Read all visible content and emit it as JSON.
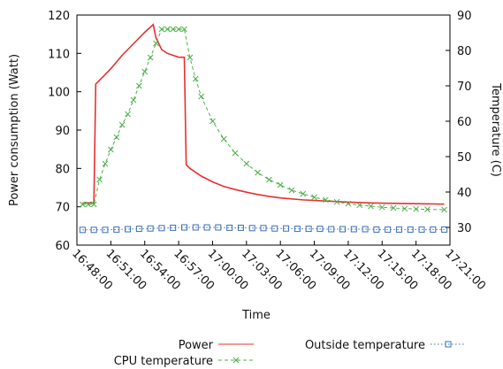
{
  "chart_data": {
    "type": "line",
    "xlabel": "Time",
    "ylabel": "Power consumption (Watt)",
    "y2label": "Temperature (C)",
    "xlim": [
      "16:48:00",
      "17:21:00"
    ],
    "xticks": [
      "16:48:00",
      "16:51:00",
      "16:54:00",
      "16:57:00",
      "17:00:00",
      "17:03:00",
      "17:06:00",
      "17:09:00",
      "17:12:00",
      "17:15:00",
      "17:18:00",
      "17:21:00"
    ],
    "ylim": [
      60,
      120
    ],
    "yticks": [
      60,
      70,
      80,
      90,
      100,
      110,
      120
    ],
    "y2lim": [
      25,
      90
    ],
    "y2ticks": [
      30,
      40,
      50,
      60,
      70,
      80,
      90
    ],
    "series": [
      {
        "name": "Power",
        "color": "#e8302f",
        "marker": "none",
        "dash": "solid",
        "x": [
          "16:48:30",
          "16:49:00",
          "16:49:30",
          "16:49:40",
          "16:50:00",
          "16:51:00",
          "16:52:00",
          "16:53:00",
          "16:54:00",
          "16:54:45",
          "16:55:00",
          "16:55:30",
          "16:56:00",
          "16:57:00",
          "16:57:30",
          "16:57:40",
          "16:58:00",
          "16:59:00",
          "17:00:00",
          "17:01:00",
          "17:02:00",
          "17:03:00",
          "17:04:00",
          "17:05:00",
          "17:06:00",
          "17:08:00",
          "17:10:00",
          "17:12:00",
          "17:14:00",
          "17:16:00",
          "17:18:00",
          "17:20:30"
        ],
        "values": [
          71,
          71,
          71,
          102,
          103,
          106,
          109.5,
          112.5,
          115.5,
          117.5,
          114,
          111,
          110,
          109,
          109,
          81,
          80,
          78,
          76.5,
          75.3,
          74.5,
          73.8,
          73.2,
          72.7,
          72.3,
          71.8,
          71.5,
          71.2,
          71,
          70.9,
          70.8,
          70.7
        ]
      },
      {
        "name": "CPU temperature",
        "color": "#4db04a",
        "marker": "x",
        "dash": "dashed",
        "axis": "y2",
        "x": [
          "16:48:30",
          "16:49:00",
          "16:49:30",
          "16:50:00",
          "16:50:30",
          "16:51:00",
          "16:51:30",
          "16:52:00",
          "16:52:30",
          "16:53:00",
          "16:53:30",
          "16:54:00",
          "16:54:30",
          "16:55:00",
          "16:55:30",
          "16:56:00",
          "16:56:30",
          "16:57:00",
          "16:57:30",
          "16:58:00",
          "16:58:30",
          "16:59:00",
          "17:00:00",
          "17:01:00",
          "17:02:00",
          "17:03:00",
          "17:04:00",
          "17:05:00",
          "17:06:00",
          "17:07:00",
          "17:08:00",
          "17:09:00",
          "17:10:00",
          "17:11:00",
          "17:12:00",
          "17:13:00",
          "17:14:00",
          "17:15:00",
          "17:16:00",
          "17:17:00",
          "17:18:00",
          "17:19:00",
          "17:20:30"
        ],
        "values": [
          36.5,
          36.5,
          36.5,
          43.5,
          48,
          52,
          55.5,
          59,
          62,
          66,
          70,
          74,
          78,
          82,
          86,
          86,
          86,
          86,
          86,
          78,
          72,
          67,
          60,
          55,
          51,
          48,
          45.5,
          43.5,
          42,
          40.5,
          39.5,
          38.5,
          37.8,
          37.2,
          36.7,
          36.3,
          36,
          35.7,
          35.5,
          35.3,
          35.2,
          35.1,
          35
        ]
      },
      {
        "name": "Outside temperature",
        "color": "#3a6fb5",
        "marker": "square",
        "dash": "dotted",
        "axis": "y2",
        "x": [
          "16:48:30",
          "16:49:30",
          "16:50:30",
          "16:51:30",
          "16:52:30",
          "16:53:30",
          "16:54:30",
          "16:55:30",
          "16:56:30",
          "16:57:30",
          "16:58:30",
          "16:59:30",
          "17:00:30",
          "17:01:30",
          "17:02:30",
          "17:03:30",
          "17:04:30",
          "17:05:30",
          "17:06:30",
          "17:07:30",
          "17:08:30",
          "17:09:30",
          "17:10:30",
          "17:11:30",
          "17:12:30",
          "17:13:30",
          "17:14:30",
          "17:15:30",
          "17:16:30",
          "17:17:30",
          "17:18:30",
          "17:19:30",
          "17:20:30"
        ],
        "values": [
          29.3,
          29.3,
          29.3,
          29.4,
          29.5,
          29.6,
          29.7,
          29.8,
          29.9,
          30,
          30,
          30,
          30,
          29.9,
          29.9,
          29.8,
          29.8,
          29.7,
          29.7,
          29.6,
          29.6,
          29.6,
          29.5,
          29.5,
          29.5,
          29.5,
          29.4,
          29.4,
          29.4,
          29.4,
          29.4,
          29.4,
          29.4
        ]
      }
    ]
  }
}
